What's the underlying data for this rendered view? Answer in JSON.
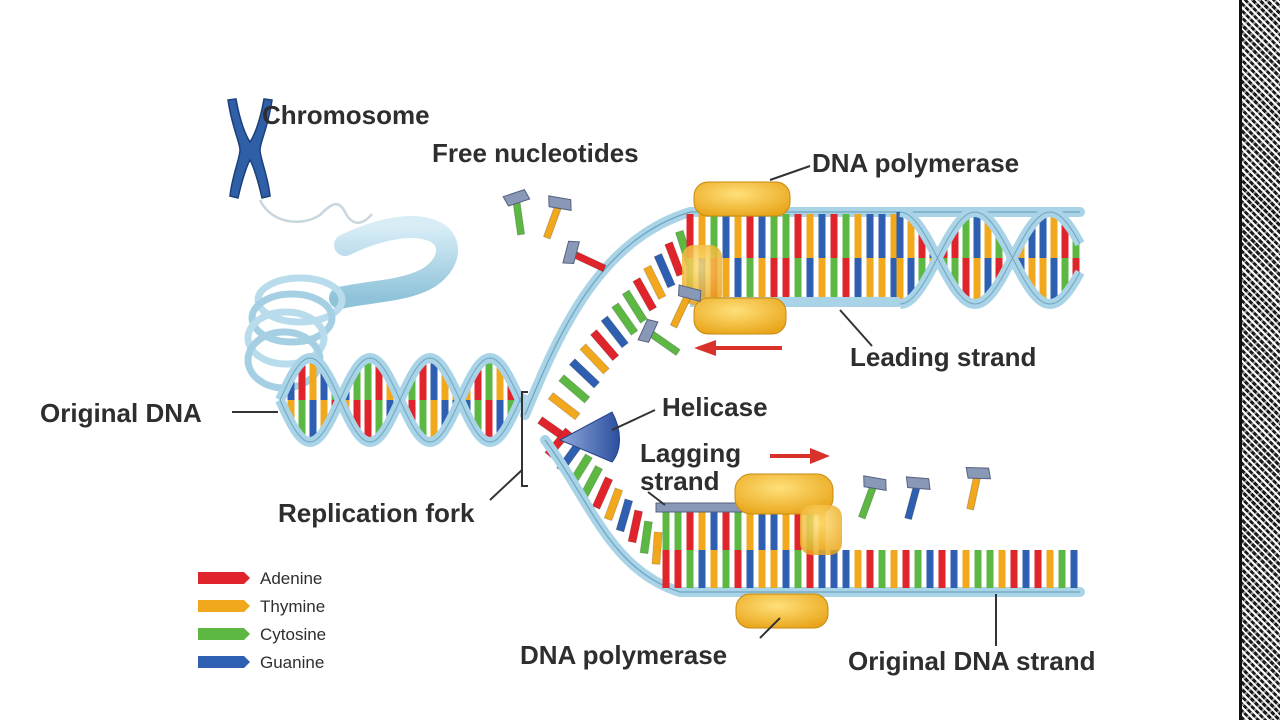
{
  "labels": {
    "chromosome": "Chromosome",
    "free_nucleotides": "Free nucleotides",
    "dna_polymerase_top": "DNA polymerase",
    "leading_strand": "Leading strand",
    "helicase": "Helicase",
    "lagging_strand_line1": "Lagging",
    "lagging_strand_line2": "strand",
    "original_dna": "Original DNA",
    "replication_fork": "Replication fork",
    "dna_polymerase_bottom": "DNA polymerase",
    "original_dna_strand": "Original DNA strand"
  },
  "legend": [
    {
      "name": "Adenine",
      "color": "#e0242b"
    },
    {
      "name": "Thymine",
      "color": "#f2a81d"
    },
    {
      "name": "Cytosine",
      "color": "#5cb843"
    },
    {
      "name": "Guanine",
      "color": "#2f5fb0"
    }
  ],
  "colors": {
    "backbone": "#a9d3e6",
    "backbone_dark": "#5f93ad",
    "polymerase": "#f3b92a",
    "helicase": "#3d63b5",
    "chromosome": "#2f5fa6",
    "arrow": "#d9322b"
  }
}
